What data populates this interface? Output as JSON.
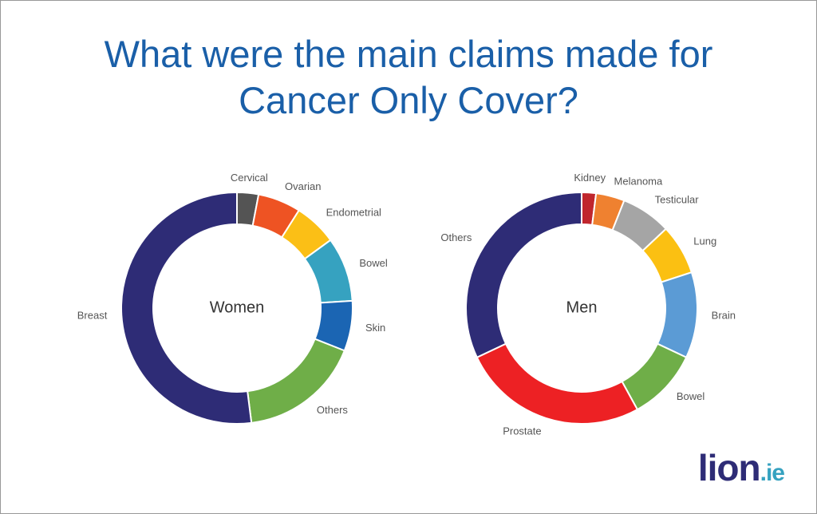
{
  "title": "What were the main claims made for Cancer Only Cover?",
  "chart_data": [
    {
      "type": "donut",
      "center_label": "Women",
      "categories": [
        "Cervical",
        "Ovarian",
        "Endometrial",
        "Bowel",
        "Skin",
        "Others",
        "Breast"
      ],
      "values": [
        3,
        6,
        6,
        9,
        7,
        17,
        52
      ],
      "colors": [
        "#545454",
        "#ee5323",
        "#fbbf16",
        "#36a2c0",
        "#1b65b3",
        "#6fae48",
        "#2e2c76"
      ]
    },
    {
      "type": "donut",
      "center_label": "Men",
      "categories": [
        "Kidney",
        "Melanoma",
        "Testicular",
        "Lung",
        "Brain",
        "Bowel",
        "Prostate",
        "Others"
      ],
      "values": [
        2,
        4,
        7,
        7,
        12,
        10,
        26,
        32
      ],
      "colors": [
        "#c0262d",
        "#ef8130",
        "#a5a5a5",
        "#fbc012",
        "#5b9bd5",
        "#6fae48",
        "#ed2124",
        "#2e2c76"
      ]
    }
  ],
  "logo": {
    "name": "lion",
    "suffix": ".ie"
  }
}
